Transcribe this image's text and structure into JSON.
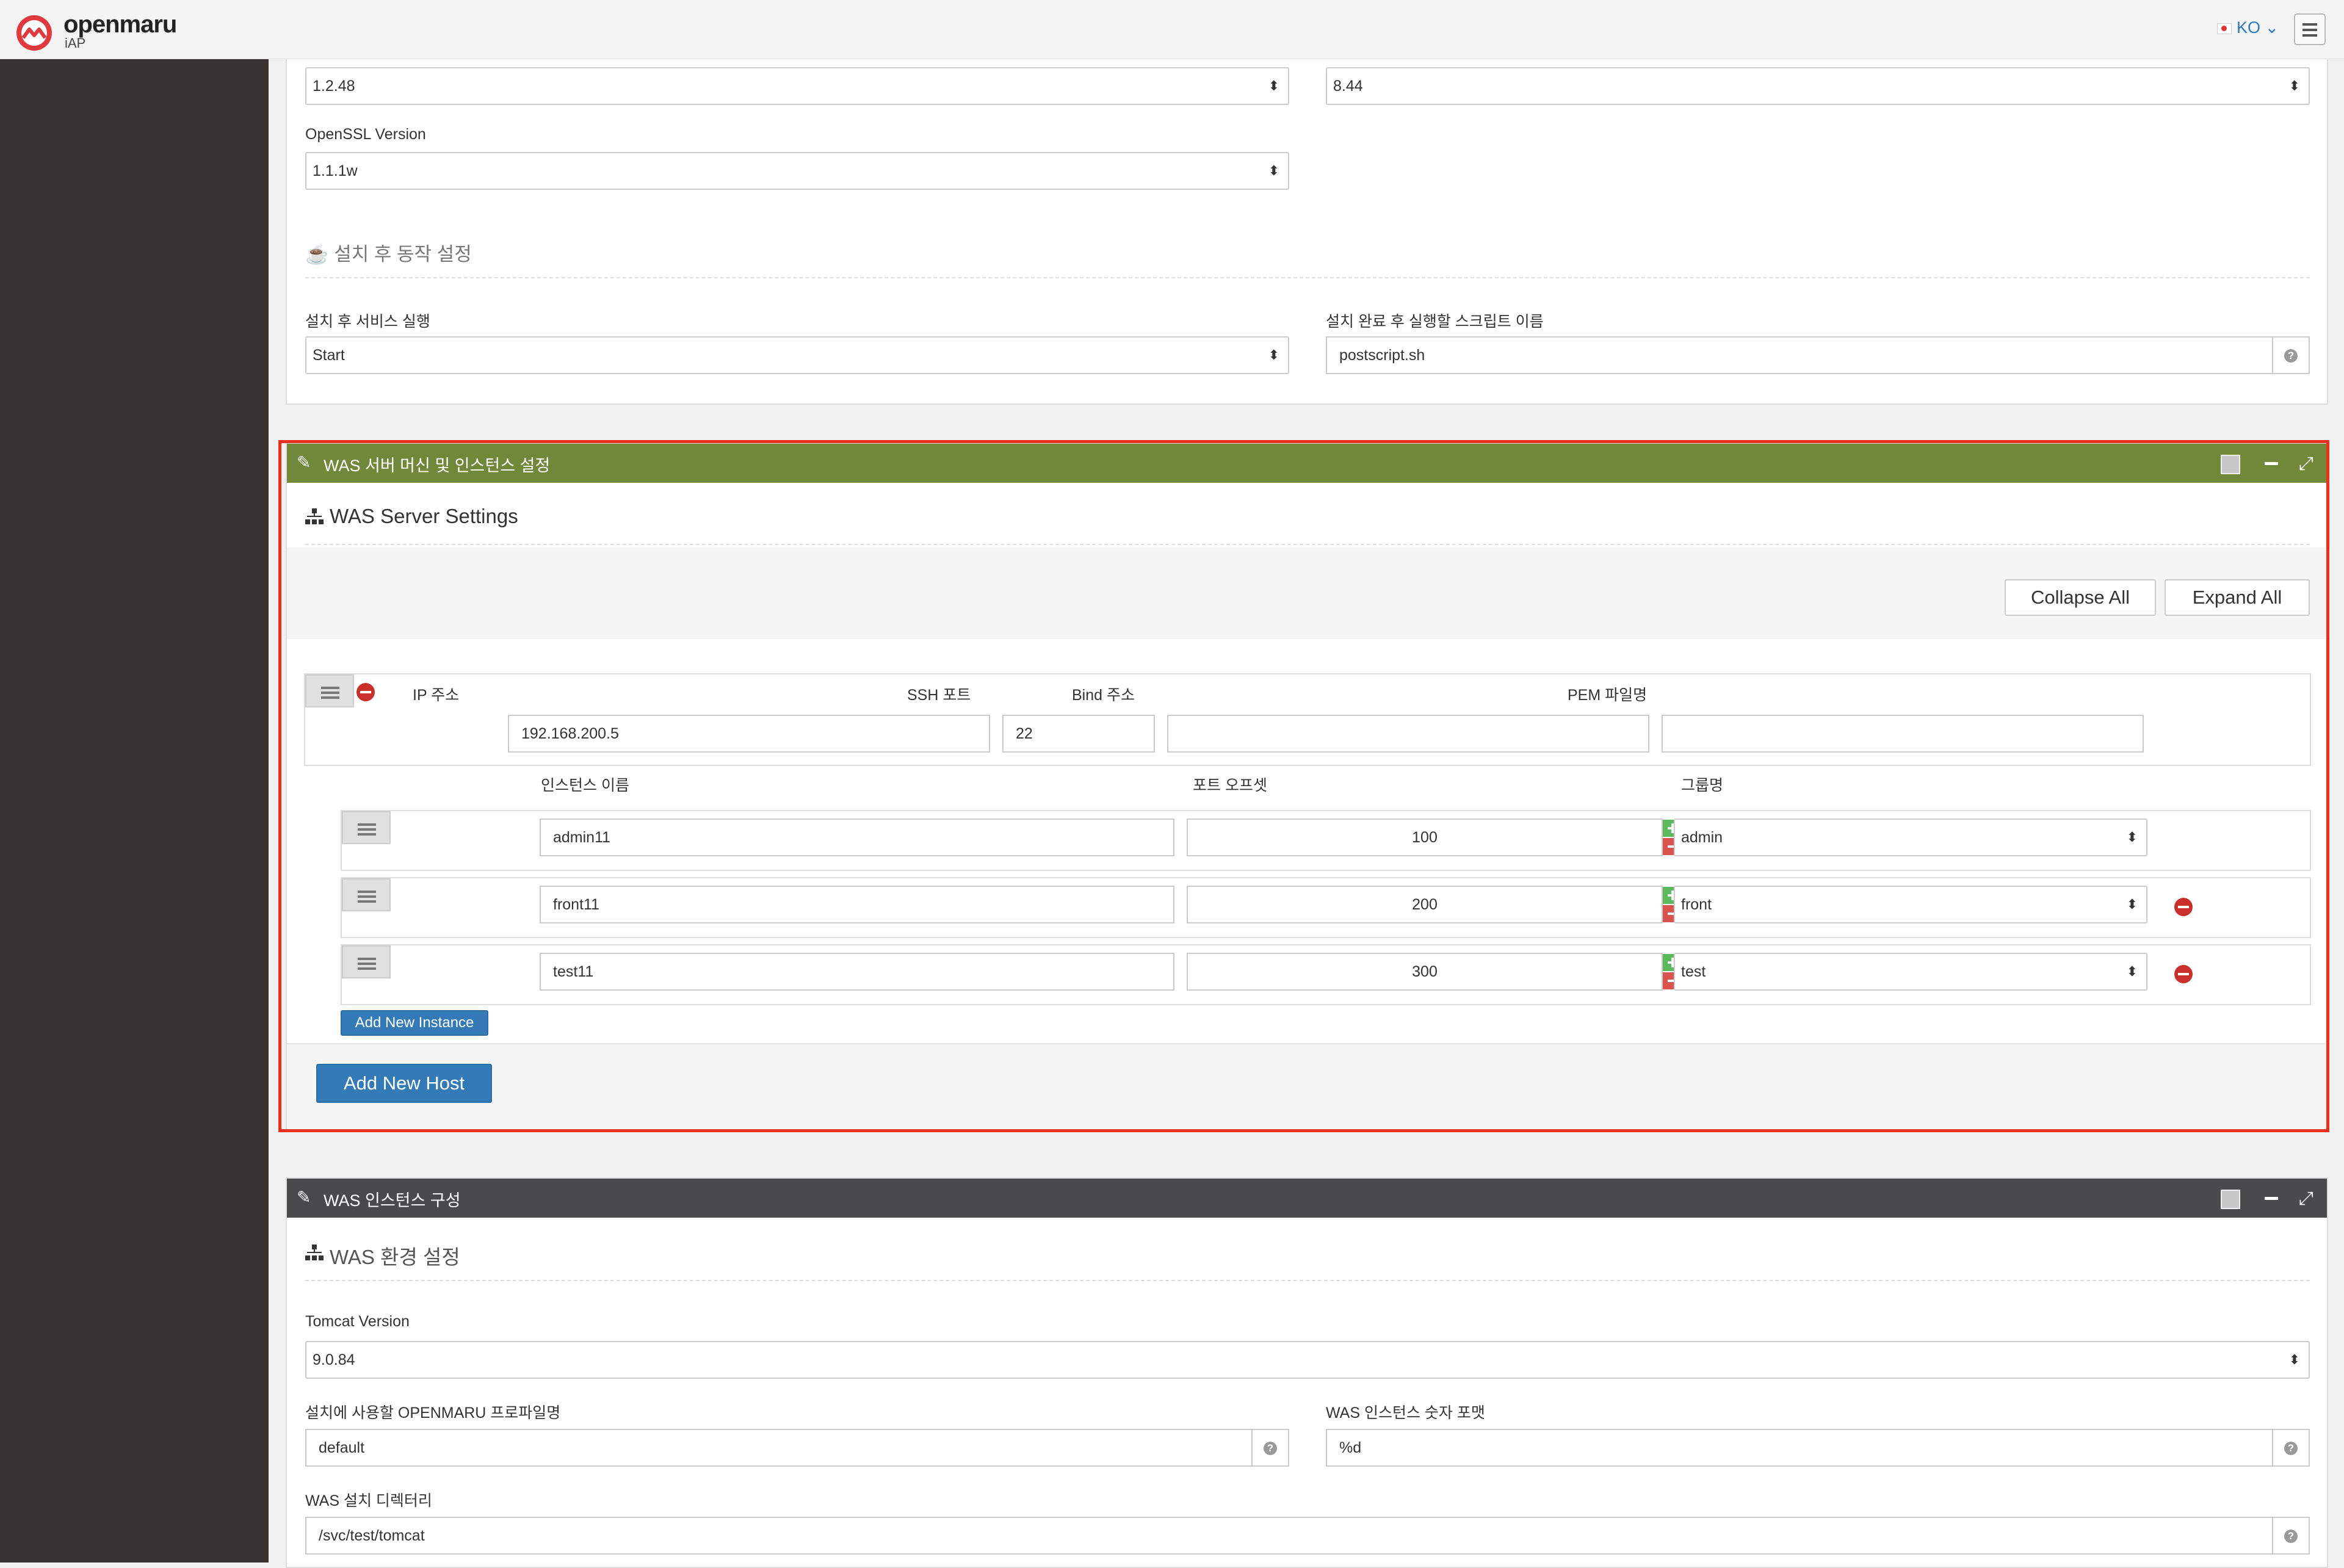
{
  "header": {
    "brand": "openmaru",
    "brand_sub": "iAP",
    "language": "KO ⌄"
  },
  "top_panel": {
    "select_left_value": "1.2.48",
    "select_right_value": "8.44",
    "openssl_label": "OpenSSL Version",
    "openssl_value": "1.1.1w",
    "post_install_title": "설치 후 동작 설정",
    "service_run_label": "설치 후 서비스 실행",
    "service_run_value": "Start",
    "script_name_label": "설치 완료 후 실행할 스크립트 이름",
    "script_name_value": "postscript.sh"
  },
  "was_panel": {
    "title": "WAS 서버 머신 및 인스턴스 설정",
    "header_color": "#71873a",
    "section_title": "WAS Server Settings",
    "collapse_all": "Collapse All",
    "expand_all": "Expand All",
    "host": {
      "col_ip": "IP 주소",
      "col_ssh": "SSH 포트",
      "col_bind": "Bind 주소",
      "col_pem": "PEM 파일명",
      "ip_value": "192.168.200.5",
      "ssh_value": "22",
      "bind_value": "",
      "pem_value": ""
    },
    "instance_headers": {
      "name": "인스턴스 이름",
      "port_offset": "포트 오프셋",
      "group": "그룹명"
    },
    "instances": [
      {
        "name": "admin11",
        "offset": "100",
        "group": "admin"
      },
      {
        "name": "front11",
        "offset": "200",
        "group": "front"
      },
      {
        "name": "test11",
        "offset": "300",
        "group": "test"
      }
    ],
    "add_instance": "Add New Instance",
    "add_host": "Add New Host",
    "highlight_color": "#e8321e"
  },
  "instance_panel": {
    "title": "WAS 인스턴스 구성",
    "header_color": "#4a4a4d",
    "section_title": "WAS 환경 설정",
    "tomcat_label": "Tomcat Version",
    "tomcat_value": "9.0.84",
    "profile_label": "설치에 사용할 OPENMARU 프로파일명",
    "profile_value": "default",
    "numformat_label": "WAS 인스턴스 숫자 포맷",
    "numformat_value": "%d",
    "dir_label": "WAS 설치 디렉터리",
    "dir_value": "/svc/test/tomcat"
  }
}
